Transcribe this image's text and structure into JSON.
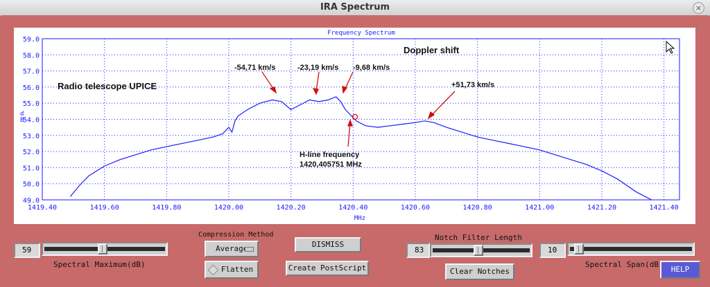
{
  "window": {
    "title": "IRA Spectrum",
    "close_glyph": "×"
  },
  "plot": {
    "title": "Frequency Spectrum",
    "ylabel_top": "d",
    "ylabel_bottom": "B",
    "xlabel": "MHz",
    "annotations": {
      "telescope": "Radio telescope UPICE",
      "doppler": "Doppler shift",
      "v1": "-54,71 km/s",
      "v2": "-23,19 km/s",
      "v3": "-9,68 km/s",
      "v4": "+51,73 km/s",
      "hline1": "H-line frequency",
      "hline2": "1420,405751 MHz"
    }
  },
  "chart_data": {
    "type": "line",
    "title": "Frequency Spectrum",
    "xlabel": "MHz",
    "ylabel": "dB",
    "xlim": [
      1419.4,
      1421.45
    ],
    "ylim": [
      49.0,
      59.0
    ],
    "xticks": [
      "1419.40",
      "1419.60",
      "1419.80",
      "1420.00",
      "1420.20",
      "1420.40",
      "1420.60",
      "1420.80",
      "1421.00",
      "1421.20",
      "1421.40"
    ],
    "yticks": [
      "49.0",
      "50.0",
      "51.0",
      "52.0",
      "53.0",
      "54.0",
      "55.0",
      "56.0",
      "57.0",
      "58.0",
      "59.0"
    ],
    "grid": true,
    "series": [
      {
        "color": "#1a1aff",
        "x": [
          1419.49,
          1419.52,
          1419.55,
          1419.6,
          1419.65,
          1419.7,
          1419.75,
          1419.8,
          1419.85,
          1419.9,
          1419.95,
          1419.98,
          1420.0,
          1420.01,
          1420.02,
          1420.03,
          1420.06,
          1420.1,
          1420.14,
          1420.17,
          1420.2,
          1420.23,
          1420.26,
          1420.29,
          1420.32,
          1420.345,
          1420.36,
          1420.375,
          1420.39,
          1420.41,
          1420.44,
          1420.48,
          1420.52,
          1420.56,
          1420.6,
          1420.63,
          1420.66,
          1420.7,
          1420.75,
          1420.8,
          1420.85,
          1420.9,
          1420.95,
          1421.0,
          1421.05,
          1421.1,
          1421.15,
          1421.2,
          1421.25,
          1421.28,
          1421.31,
          1421.34,
          1421.36
        ],
        "y": [
          49.2,
          49.9,
          50.5,
          51.1,
          51.5,
          51.8,
          52.1,
          52.3,
          52.5,
          52.7,
          52.9,
          53.1,
          53.5,
          53.2,
          53.9,
          54.2,
          54.6,
          55.0,
          55.2,
          55.1,
          54.6,
          54.9,
          55.2,
          55.1,
          55.2,
          55.4,
          55.1,
          54.6,
          54.3,
          53.9,
          53.6,
          53.5,
          53.6,
          53.7,
          53.8,
          53.9,
          53.8,
          53.5,
          53.2,
          52.9,
          52.7,
          52.5,
          52.3,
          52.1,
          51.8,
          51.5,
          51.2,
          50.8,
          50.3,
          49.9,
          49.5,
          49.2,
          49.0
        ]
      }
    ]
  },
  "controls": {
    "spectral_maximum": {
      "value": "59",
      "label": "Spectral Maximum(dB)",
      "position": 0.48
    },
    "compression": {
      "label": "Compression Method",
      "selected": "Average"
    },
    "flatten_label": "Flatten",
    "dismiss_label": "DISMISS",
    "postscript_label": "Create PostScript",
    "notch": {
      "value": "83",
      "label": "Notch Filter Length",
      "position": 0.47
    },
    "clear_notches_label": "Clear Notches",
    "spectral_span": {
      "value": "10",
      "label": "Spectral Span(dB)",
      "position": 0.05
    },
    "help_label": "HELP"
  },
  "colors": {
    "background": "#c86a6a",
    "trace": "#1a1aff",
    "grid": "#1a1aff",
    "arrow": "#d01010",
    "help_button": "#5a5ad6"
  }
}
